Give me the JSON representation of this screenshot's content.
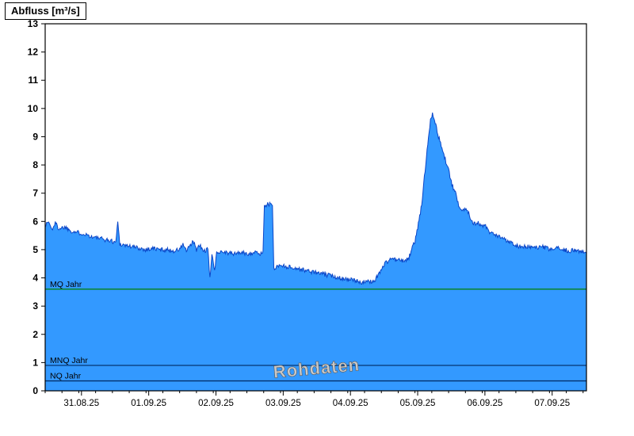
{
  "title_box": {
    "label": "Abfluss [m³/s]"
  },
  "chart_data": {
    "type": "area",
    "title": "Abfluss [m³/s]",
    "ylabel": "Abfluss [m³/s]",
    "xlabel": "",
    "ylim": [
      0,
      13
    ],
    "y_tick_step": 1,
    "x_range_days": [
      0,
      8.05
    ],
    "x_minor_step_days": 0.25,
    "x_ticks": [
      {
        "pos": 0.54,
        "label": "31.08.25"
      },
      {
        "pos": 1.54,
        "label": "01.09.25"
      },
      {
        "pos": 2.54,
        "label": "02.09.25"
      },
      {
        "pos": 3.54,
        "label": "03.09.25"
      },
      {
        "pos": 4.54,
        "label": "04.09.25"
      },
      {
        "pos": 5.54,
        "label": "05.09.25"
      },
      {
        "pos": 6.54,
        "label": "06.09.25"
      },
      {
        "pos": 7.54,
        "label": "07.09.25"
      }
    ],
    "grid": false,
    "legend": "none",
    "fill_color": "#3399ff",
    "line_color": "#0a46c8",
    "frame_color": "#000000",
    "noise_amplitude": 0.08,
    "sample_step_days": 0.01,
    "series": {
      "name": "Abfluss Rohdaten",
      "unit": "m³/s",
      "keypoints": [
        [
          0.0,
          5.85
        ],
        [
          0.05,
          6.0
        ],
        [
          0.1,
          5.7
        ],
        [
          0.15,
          5.95
        ],
        [
          0.2,
          5.75
        ],
        [
          0.3,
          5.8
        ],
        [
          0.4,
          5.65
        ],
        [
          0.5,
          5.6
        ],
        [
          0.6,
          5.55
        ],
        [
          0.7,
          5.45
        ],
        [
          0.8,
          5.4
        ],
        [
          0.9,
          5.35
        ],
        [
          1.0,
          5.3
        ],
        [
          1.05,
          5.25
        ],
        [
          1.08,
          6.0
        ],
        [
          1.11,
          5.2
        ],
        [
          1.2,
          5.15
        ],
        [
          1.3,
          5.1
        ],
        [
          1.4,
          5.05
        ],
        [
          1.5,
          5.0
        ],
        [
          1.6,
          5.05
        ],
        [
          1.7,
          5.0
        ],
        [
          1.8,
          5.0
        ],
        [
          1.9,
          4.95
        ],
        [
          2.0,
          5.0
        ],
        [
          2.05,
          5.2
        ],
        [
          2.1,
          4.95
        ],
        [
          2.15,
          5.1
        ],
        [
          2.2,
          5.3
        ],
        [
          2.25,
          5.0
        ],
        [
          2.3,
          5.15
        ],
        [
          2.35,
          4.95
        ],
        [
          2.42,
          5.0
        ],
        [
          2.45,
          3.95
        ],
        [
          2.48,
          4.9
        ],
        [
          2.52,
          4.2
        ],
        [
          2.55,
          4.9
        ],
        [
          2.6,
          4.95
        ],
        [
          2.7,
          4.9
        ],
        [
          2.8,
          4.85
        ],
        [
          2.9,
          4.9
        ],
        [
          3.0,
          4.85
        ],
        [
          3.1,
          4.9
        ],
        [
          3.2,
          4.85
        ],
        [
          3.24,
          4.9
        ],
        [
          3.26,
          6.6
        ],
        [
          3.38,
          6.6
        ],
        [
          3.4,
          4.35
        ],
        [
          3.5,
          4.45
        ],
        [
          3.6,
          4.4
        ],
        [
          3.7,
          4.35
        ],
        [
          3.8,
          4.3
        ],
        [
          3.9,
          4.25
        ],
        [
          4.0,
          4.2
        ],
        [
          4.1,
          4.15
        ],
        [
          4.2,
          4.1
        ],
        [
          4.3,
          4.05
        ],
        [
          4.4,
          4.0
        ],
        [
          4.5,
          3.95
        ],
        [
          4.6,
          3.9
        ],
        [
          4.7,
          3.85
        ],
        [
          4.8,
          3.85
        ],
        [
          4.9,
          3.9
        ],
        [
          4.95,
          4.1
        ],
        [
          5.0,
          4.3
        ],
        [
          5.05,
          4.5
        ],
        [
          5.1,
          4.6
        ],
        [
          5.15,
          4.7
        ],
        [
          5.2,
          4.65
        ],
        [
          5.3,
          4.6
        ],
        [
          5.4,
          4.65
        ],
        [
          5.45,
          5.0
        ],
        [
          5.5,
          5.3
        ],
        [
          5.55,
          5.9
        ],
        [
          5.6,
          6.6
        ],
        [
          5.65,
          7.8
        ],
        [
          5.7,
          9.0
        ],
        [
          5.73,
          9.6
        ],
        [
          5.76,
          9.85
        ],
        [
          5.8,
          9.5
        ],
        [
          5.85,
          9.0
        ],
        [
          5.9,
          8.6
        ],
        [
          5.95,
          8.2
        ],
        [
          6.0,
          7.8
        ],
        [
          6.05,
          7.3
        ],
        [
          6.1,
          7.0
        ],
        [
          6.15,
          6.6
        ],
        [
          6.2,
          6.4
        ],
        [
          6.25,
          6.45
        ],
        [
          6.3,
          6.3
        ],
        [
          6.35,
          6.0
        ],
        [
          6.4,
          5.9
        ],
        [
          6.45,
          5.95
        ],
        [
          6.5,
          5.8
        ],
        [
          6.55,
          5.85
        ],
        [
          6.6,
          5.6
        ],
        [
          6.7,
          5.5
        ],
        [
          6.8,
          5.4
        ],
        [
          6.9,
          5.3
        ],
        [
          7.0,
          5.15
        ],
        [
          7.1,
          5.1
        ],
        [
          7.2,
          5.1
        ],
        [
          7.3,
          5.05
        ],
        [
          7.4,
          5.1
        ],
        [
          7.5,
          5.0
        ],
        [
          7.6,
          5.05
        ],
        [
          7.7,
          5.0
        ],
        [
          7.8,
          4.95
        ],
        [
          7.9,
          5.0
        ],
        [
          8.0,
          4.9
        ],
        [
          8.05,
          4.9
        ]
      ]
    },
    "reference_lines": [
      {
        "label": "MQ Jahr",
        "value": 3.6,
        "color": "#008000"
      },
      {
        "label": "MNQ Jahr",
        "value": 0.9,
        "color": "#002a60"
      },
      {
        "label": "NQ Jahr",
        "value": 0.35,
        "color": "#002a60"
      }
    ],
    "watermark": {
      "text": "Rohdaten",
      "rotation_deg": -5
    }
  }
}
